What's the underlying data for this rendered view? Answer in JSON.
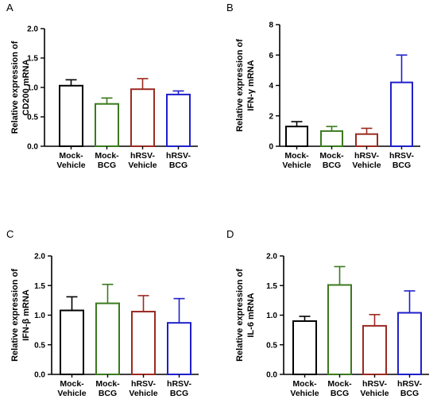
{
  "chart_data": [
    {
      "panel": "A",
      "type": "bar",
      "ylabel_lines": [
        "Relative expression of",
        "CD200 mRNA"
      ],
      "ylim": [
        0,
        2.0
      ],
      "yticks": [
        "0.0",
        "0.5",
        "1.0",
        "1.5",
        "2.0"
      ],
      "categories": [
        [
          "Mock-",
          "Vehicle"
        ],
        [
          "Mock-",
          "BCG"
        ],
        [
          "hRSV-",
          "Vehicle"
        ],
        [
          "hRSV-",
          "BCG"
        ]
      ],
      "values": [
        1.03,
        0.72,
        0.97,
        0.88
      ],
      "errors": [
        0.1,
        0.1,
        0.18,
        0.06
      ],
      "colors": [
        "#000000",
        "#3a7a1e",
        "#9b2a22",
        "#1f1fcc"
      ]
    },
    {
      "panel": "B",
      "type": "bar",
      "ylabel_lines": [
        "Relative expression of",
        "IFN-γ mRNA"
      ],
      "ylim": [
        0,
        8
      ],
      "yticks": [
        "0",
        "2",
        "4",
        "6",
        "8"
      ],
      "categories": [
        [
          "Mock-",
          "Vehicle"
        ],
        [
          "Mock-",
          "BCG"
        ],
        [
          "hRSV-",
          "Vehicle"
        ],
        [
          "hRSV-",
          "BCG"
        ]
      ],
      "values": [
        1.3,
        1.0,
        0.8,
        4.2
      ],
      "errors": [
        0.32,
        0.3,
        0.38,
        1.8
      ],
      "colors": [
        "#000000",
        "#3a7a1e",
        "#9b2a22",
        "#1f1fcc"
      ]
    },
    {
      "panel": "C",
      "type": "bar",
      "ylabel_lines": [
        "Relative expression of",
        "IFN-β mRNA"
      ],
      "ylim": [
        0,
        2.0
      ],
      "yticks": [
        "0.0",
        "0.5",
        "1.0",
        "1.5",
        "2.0"
      ],
      "categories": [
        [
          "Mock-",
          "Vehicle"
        ],
        [
          "Mock-",
          "BCG"
        ],
        [
          "hRSV-",
          "Vehicle"
        ],
        [
          "hRSV-",
          "BCG"
        ]
      ],
      "values": [
        1.08,
        1.2,
        1.06,
        0.87
      ],
      "errors": [
        0.23,
        0.32,
        0.27,
        0.41
      ],
      "colors": [
        "#000000",
        "#3a7a1e",
        "#9b2a22",
        "#1f1fcc"
      ]
    },
    {
      "panel": "D",
      "type": "bar",
      "ylabel_lines": [
        "Relative expression of",
        "IL-6 mRNA"
      ],
      "ylim": [
        0,
        2.0
      ],
      "yticks": [
        "0.0",
        "0.5",
        "1.0",
        "1.5",
        "2.0"
      ],
      "categories": [
        [
          "Mock-",
          "Vehicle"
        ],
        [
          "Mock-",
          "BCG"
        ],
        [
          "hRSV-",
          "Vehicle"
        ],
        [
          "hRSV-",
          "BCG"
        ]
      ],
      "values": [
        0.9,
        1.51,
        0.82,
        1.04
      ],
      "errors": [
        0.08,
        0.31,
        0.19,
        0.37
      ],
      "colors": [
        "#000000",
        "#3a7a1e",
        "#9b2a22",
        "#1f1fcc"
      ]
    }
  ]
}
